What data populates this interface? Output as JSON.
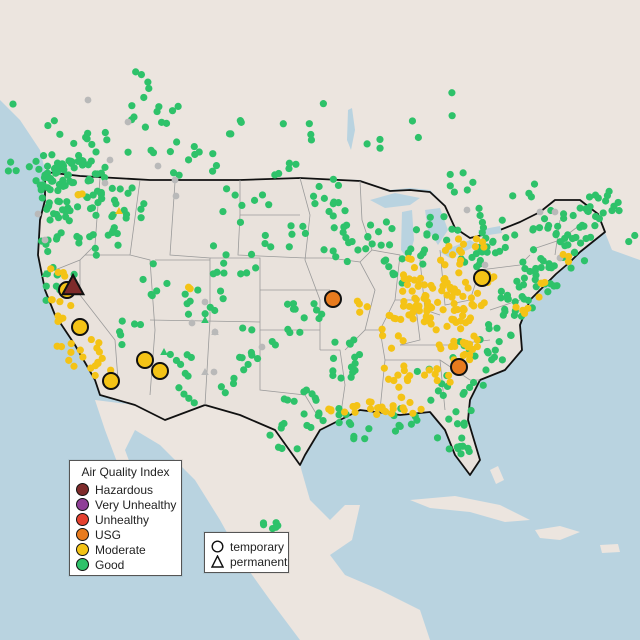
{
  "legend": {
    "title": "Air Quality Index",
    "categories": [
      {
        "label": "Hazardous",
        "color": "#7e2b2b"
      },
      {
        "label": "Very Unhealthy",
        "color": "#8f3f97"
      },
      {
        "label": "Unhealthy",
        "color": "#e5412f"
      },
      {
        "label": "USG",
        "color": "#e87b1e"
      },
      {
        "label": "Moderate",
        "color": "#f4c316"
      },
      {
        "label": "Good",
        "color": "#2ec26a"
      }
    ]
  },
  "marker_types": [
    {
      "label": "temporary",
      "shape": "circle"
    },
    {
      "label": "permanent",
      "shape": "triangle"
    }
  ],
  "colors": {
    "ocean": "#b9d3e0",
    "land": "#ece5df",
    "us_land": "#e9e2dc",
    "border": "#111111",
    "state_line": "#9a9a9a",
    "nodata": "#b9b9b9"
  }
}
